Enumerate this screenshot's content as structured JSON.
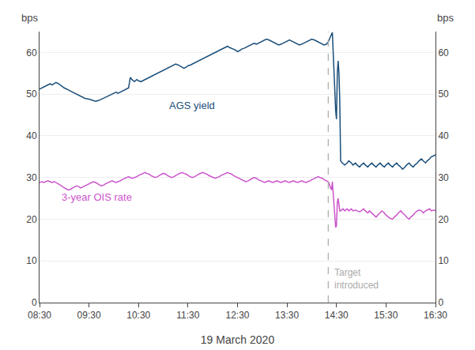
{
  "chart_data": {
    "type": "line",
    "xlabel": "19 March 2020",
    "ylabel": "bps",
    "y2label": "bps",
    "xlim": [
      0,
      480
    ],
    "xticks": [
      {
        "value": 0,
        "label": "08:30"
      },
      {
        "value": 60,
        "label": "09:30"
      },
      {
        "value": 120,
        "label": "10:30"
      },
      {
        "value": 180,
        "label": "11:30"
      },
      {
        "value": 240,
        "label": "12:30"
      },
      {
        "value": 300,
        "label": "13:30"
      },
      {
        "value": 360,
        "label": "14:30"
      },
      {
        "value": 420,
        "label": "15:30"
      },
      {
        "value": 480,
        "label": "16:30"
      }
    ],
    "ylim": [
      0,
      65
    ],
    "yticks": [
      0,
      10,
      20,
      30,
      40,
      50,
      60
    ],
    "y2lim": [
      0,
      65
    ],
    "y2ticks": [
      0,
      10,
      20,
      30,
      40,
      50,
      60
    ],
    "grid": "y",
    "vline": {
      "x": 350,
      "color": "#aaaaaa",
      "line_style": "dashed",
      "label": [
        "Target",
        "introduced"
      ]
    },
    "series": [
      {
        "name": "AGS yield",
        "color": "#1b4f7a",
        "x": [
          0,
          3,
          5,
          8,
          10,
          13,
          15,
          17,
          20,
          23,
          25,
          28,
          30,
          35,
          40,
          45,
          50,
          55,
          60,
          65,
          68,
          72,
          75,
          78,
          80,
          83,
          85,
          88,
          90,
          93,
          95,
          98,
          100,
          103,
          105,
          108,
          110,
          112,
          115,
          118,
          120,
          123,
          125,
          128,
          130,
          133,
          135,
          138,
          140,
          143,
          145,
          148,
          150,
          153,
          155,
          158,
          160,
          163,
          165,
          168,
          170,
          173,
          175,
          178,
          180,
          183,
          185,
          188,
          190,
          193,
          195,
          198,
          200,
          203,
          205,
          208,
          210,
          213,
          215,
          218,
          220,
          223,
          225,
          228,
          230,
          233,
          235,
          238,
          240,
          243,
          245,
          248,
          250,
          253,
          255,
          258,
          260,
          263,
          265,
          268,
          270,
          273,
          275,
          278,
          280,
          283,
          285,
          288,
          290,
          293,
          295,
          298,
          300,
          303,
          305,
          308,
          310,
          313,
          315,
          318,
          320,
          323,
          325,
          328,
          330,
          333,
          335,
          338,
          340,
          343,
          345,
          348,
          350,
          351,
          352,
          353,
          354,
          355,
          356,
          357,
          358,
          359,
          360,
          361,
          362,
          363,
          364,
          365,
          367,
          370,
          373,
          375,
          378,
          380,
          383,
          385,
          388,
          390,
          393,
          395,
          398,
          400,
          403,
          405,
          408,
          410,
          413,
          415,
          418,
          420,
          423,
          425,
          428,
          430,
          433,
          435,
          438,
          440,
          443,
          445,
          448,
          450,
          453,
          455,
          458,
          460,
          463,
          465,
          468,
          470,
          473,
          475,
          478,
          480
        ],
        "values": [
          51.2,
          51.5,
          51.8,
          52.0,
          52.3,
          52.5,
          52.2,
          52.5,
          52.8,
          52.5,
          52.2,
          51.8,
          51.5,
          51.0,
          50.5,
          50.0,
          49.5,
          49.0,
          48.8,
          48.5,
          48.3,
          48.5,
          48.8,
          49.0,
          49.2,
          49.5,
          49.8,
          50.0,
          50.3,
          50.5,
          50.2,
          50.5,
          50.8,
          51.0,
          51.3,
          51.5,
          54.0,
          53.5,
          53.0,
          53.5,
          53.2,
          53.0,
          53.2,
          53.5,
          53.8,
          54.0,
          54.2,
          54.5,
          54.8,
          55.0,
          55.3,
          55.5,
          55.8,
          56.0,
          56.2,
          56.5,
          56.8,
          57.0,
          57.2,
          57.0,
          56.8,
          56.5,
          56.2,
          56.5,
          56.8,
          57.0,
          57.2,
          57.5,
          57.8,
          58.0,
          58.2,
          58.5,
          58.8,
          59.0,
          59.2,
          59.5,
          59.8,
          60.0,
          60.2,
          60.5,
          60.8,
          61.0,
          61.2,
          61.5,
          61.2,
          61.0,
          60.8,
          60.5,
          60.2,
          60.5,
          60.8,
          61.0,
          61.2,
          61.5,
          61.8,
          62.0,
          62.2,
          62.0,
          62.2,
          62.5,
          62.8,
          63.0,
          63.2,
          63.0,
          62.8,
          62.5,
          62.2,
          62.0,
          61.8,
          62.0,
          62.2,
          62.5,
          62.8,
          63.0,
          62.8,
          62.5,
          62.2,
          62.0,
          61.8,
          62.0,
          62.2,
          62.5,
          62.8,
          63.0,
          63.2,
          63.0,
          62.8,
          62.5,
          62.2,
          62.0,
          61.8,
          62.0,
          62.5,
          63.0,
          63.5,
          64.0,
          64.5,
          64.8,
          60.0,
          55.0,
          50.0,
          46.0,
          44.0,
          55.0,
          58.0,
          55.0,
          48.0,
          34.0,
          33.5,
          33.0,
          33.5,
          34.0,
          33.5,
          33.0,
          33.5,
          33.0,
          32.5,
          33.0,
          33.5,
          33.0,
          32.5,
          33.0,
          33.5,
          33.0,
          32.5,
          33.0,
          33.5,
          33.0,
          32.5,
          33.0,
          33.5,
          33.0,
          32.5,
          33.0,
          33.5,
          33.0,
          32.5,
          32.0,
          32.5,
          33.0,
          33.5,
          33.0,
          32.5,
          33.0,
          33.5,
          34.0,
          34.5,
          34.0,
          33.5,
          34.0,
          34.5,
          35.0,
          35.2,
          35.5
        ]
      },
      {
        "name": "3-year OIS rate",
        "color": "#cc55cc",
        "x": [
          0,
          3,
          5,
          8,
          10,
          13,
          15,
          18,
          20,
          23,
          25,
          28,
          30,
          33,
          35,
          38,
          40,
          43,
          45,
          48,
          50,
          53,
          55,
          58,
          60,
          63,
          65,
          68,
          70,
          73,
          75,
          78,
          80,
          83,
          85,
          88,
          90,
          93,
          95,
          98,
          100,
          103,
          105,
          108,
          110,
          113,
          115,
          118,
          120,
          123,
          125,
          128,
          130,
          133,
          135,
          138,
          140,
          143,
          145,
          148,
          150,
          153,
          155,
          158,
          160,
          163,
          165,
          168,
          170,
          173,
          175,
          178,
          180,
          183,
          185,
          188,
          190,
          193,
          195,
          198,
          200,
          203,
          205,
          208,
          210,
          213,
          215,
          218,
          220,
          223,
          225,
          228,
          230,
          233,
          235,
          238,
          240,
          243,
          245,
          248,
          250,
          253,
          255,
          258,
          260,
          263,
          265,
          268,
          270,
          273,
          275,
          278,
          280,
          283,
          285,
          288,
          290,
          293,
          295,
          298,
          300,
          303,
          305,
          308,
          310,
          313,
          315,
          318,
          320,
          323,
          325,
          328,
          330,
          333,
          335,
          338,
          340,
          343,
          345,
          348,
          350,
          351,
          352,
          353,
          354,
          355,
          356,
          357,
          358,
          359,
          360,
          361,
          362,
          363,
          364,
          365,
          368,
          370,
          373,
          375,
          378,
          380,
          383,
          385,
          388,
          390,
          393,
          395,
          398,
          400,
          403,
          405,
          408,
          410,
          413,
          415,
          418,
          420,
          423,
          425,
          428,
          430,
          433,
          435,
          438,
          440,
          443,
          445,
          448,
          450,
          453,
          455,
          458,
          460,
          463,
          465,
          468,
          470,
          473,
          475,
          478,
          480
        ],
        "values": [
          28.8,
          29.0,
          28.8,
          29.0,
          29.2,
          29.0,
          28.8,
          29.0,
          28.8,
          28.5,
          28.2,
          27.8,
          27.5,
          27.2,
          27.0,
          27.2,
          27.5,
          27.8,
          28.0,
          27.8,
          27.5,
          27.8,
          28.0,
          28.2,
          28.5,
          28.8,
          29.0,
          28.8,
          28.5,
          28.2,
          28.0,
          28.2,
          28.5,
          28.8,
          29.0,
          29.2,
          29.0,
          28.8,
          29.0,
          29.2,
          29.5,
          29.8,
          30.0,
          30.2,
          30.0,
          29.8,
          30.0,
          30.2,
          30.5,
          30.8,
          31.0,
          31.2,
          31.0,
          30.8,
          30.5,
          30.2,
          30.0,
          30.2,
          30.5,
          30.8,
          31.0,
          30.8,
          30.5,
          30.2,
          30.0,
          30.2,
          30.5,
          30.8,
          31.0,
          31.2,
          31.0,
          30.8,
          30.5,
          30.2,
          30.0,
          30.2,
          30.5,
          30.8,
          31.0,
          31.2,
          31.0,
          30.8,
          30.5,
          30.2,
          30.0,
          29.8,
          30.0,
          30.2,
          30.5,
          30.8,
          31.0,
          31.2,
          31.0,
          30.8,
          30.5,
          30.2,
          30.0,
          29.8,
          29.5,
          29.2,
          29.0,
          29.2,
          29.5,
          29.8,
          30.0,
          29.8,
          29.5,
          29.2,
          29.0,
          28.8,
          29.0,
          29.2,
          29.0,
          28.8,
          29.0,
          29.2,
          29.0,
          28.8,
          29.0,
          29.2,
          29.0,
          28.8,
          29.0,
          29.2,
          29.0,
          28.8,
          29.0,
          29.2,
          29.0,
          28.8,
          29.0,
          29.2,
          29.5,
          29.8,
          30.0,
          30.2,
          30.0,
          29.8,
          29.5,
          29.2,
          29.0,
          28.5,
          28.0,
          27.5,
          27.0,
          29.0,
          26.0,
          23.0,
          20.0,
          18.0,
          18.5,
          24.0,
          25.0,
          23.0,
          22.0,
          22.0,
          22.5,
          22.0,
          22.5,
          22.0,
          22.5,
          22.0,
          22.2,
          22.0,
          21.8,
          22.0,
          22.5,
          22.0,
          21.5,
          22.0,
          21.5,
          21.0,
          20.5,
          21.0,
          21.5,
          22.0,
          21.5,
          21.0,
          20.5,
          20.2,
          20.0,
          20.5,
          21.0,
          21.5,
          22.0,
          21.5,
          21.0,
          20.5,
          20.0,
          20.5,
          21.0,
          21.5,
          22.0,
          22.2,
          22.0,
          21.5,
          22.0,
          22.2,
          22.5,
          22.0,
          22.2,
          22.0
        ]
      }
    ]
  }
}
